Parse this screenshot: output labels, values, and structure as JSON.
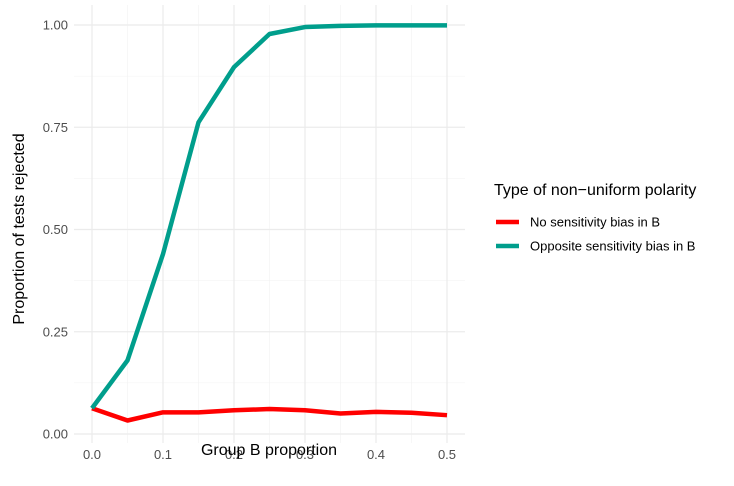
{
  "chart_data": {
    "type": "line",
    "xlabel": "Group B proportion",
    "ylabel": "Proportion of tests rejected",
    "xlim": [
      0,
      0.5
    ],
    "ylim": [
      0,
      1
    ],
    "grid": true,
    "x_ticks": [
      "0.0",
      "0.1",
      "0.2",
      "0.3",
      "0.4",
      "0.5"
    ],
    "x_tick_values": [
      0,
      0.1,
      0.2,
      0.3,
      0.4,
      0.5
    ],
    "y_ticks": [
      "0.00",
      "0.25",
      "0.50",
      "0.75",
      "1.00"
    ],
    "y_tick_values": [
      0,
      0.25,
      0.5,
      0.75,
      1.0
    ],
    "legend": {
      "title": "Type of non−uniform polarity",
      "placement": "right"
    },
    "x": [
      0,
      0.05,
      0.1,
      0.15,
      0.2,
      0.25,
      0.3,
      0.35,
      0.4,
      0.45,
      0.5
    ],
    "series": [
      {
        "name": "No sensitivity bias in B",
        "color": "#ff0000",
        "values": [
          0.063,
          0.033,
          0.053,
          0.053,
          0.058,
          0.061,
          0.058,
          0.05,
          0.054,
          0.052,
          0.046
        ]
      },
      {
        "name": "Opposite sensitivity bias in B",
        "color": "#009e8c",
        "values": [
          0.063,
          0.18,
          0.44,
          0.762,
          0.897,
          0.978,
          0.995,
          0.998,
          0.999,
          0.999,
          0.999
        ]
      }
    ]
  }
}
